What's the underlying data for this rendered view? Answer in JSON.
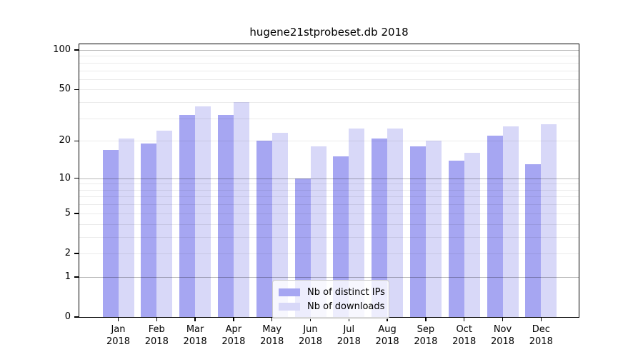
{
  "title": "hugene21stprobeset.db 2018",
  "chart_data": {
    "type": "bar",
    "title": "hugene21stprobeset.db 2018",
    "categories": [
      "Jan",
      "Feb",
      "Mar",
      "Apr",
      "May",
      "Jun",
      "Jul",
      "Aug",
      "Sep",
      "Oct",
      "Nov",
      "Dec"
    ],
    "year": "2018",
    "series": [
      {
        "name": "Nb of distinct IPs",
        "color": "#a6a6f2",
        "values": [
          17,
          19,
          32,
          32,
          20,
          10,
          15,
          21,
          18,
          14,
          22,
          13
        ]
      },
      {
        "name": "Nb of downloads",
        "color": "#d8d8f8",
        "values": [
          21,
          24,
          37,
          40,
          23,
          18,
          25,
          25,
          20,
          16,
          26,
          27
        ]
      }
    ],
    "xlabel": "",
    "ylabel": "",
    "y_scale": "log10(1+x)",
    "y_axis_ticks": [
      100,
      50,
      20,
      10,
      5,
      2,
      1,
      0
    ],
    "minor_gridline_values": [
      2,
      3,
      4,
      5,
      6,
      7,
      8,
      9,
      20,
      30,
      40,
      50,
      60,
      70,
      80,
      90
    ],
    "major_gridline_values": [
      1,
      10,
      100
    ],
    "ylim": [
      0,
      110.5
    ],
    "grid": true,
    "legend_position": "bottom-center",
    "colors": {
      "bar_distinct_ips": "#a6a6f2",
      "bar_downloads": "#d8d8f8",
      "grid_minor": "#ebebeb",
      "grid_major": "#b8b8b8",
      "axis": "#000000",
      "background": "#ffffff"
    }
  }
}
